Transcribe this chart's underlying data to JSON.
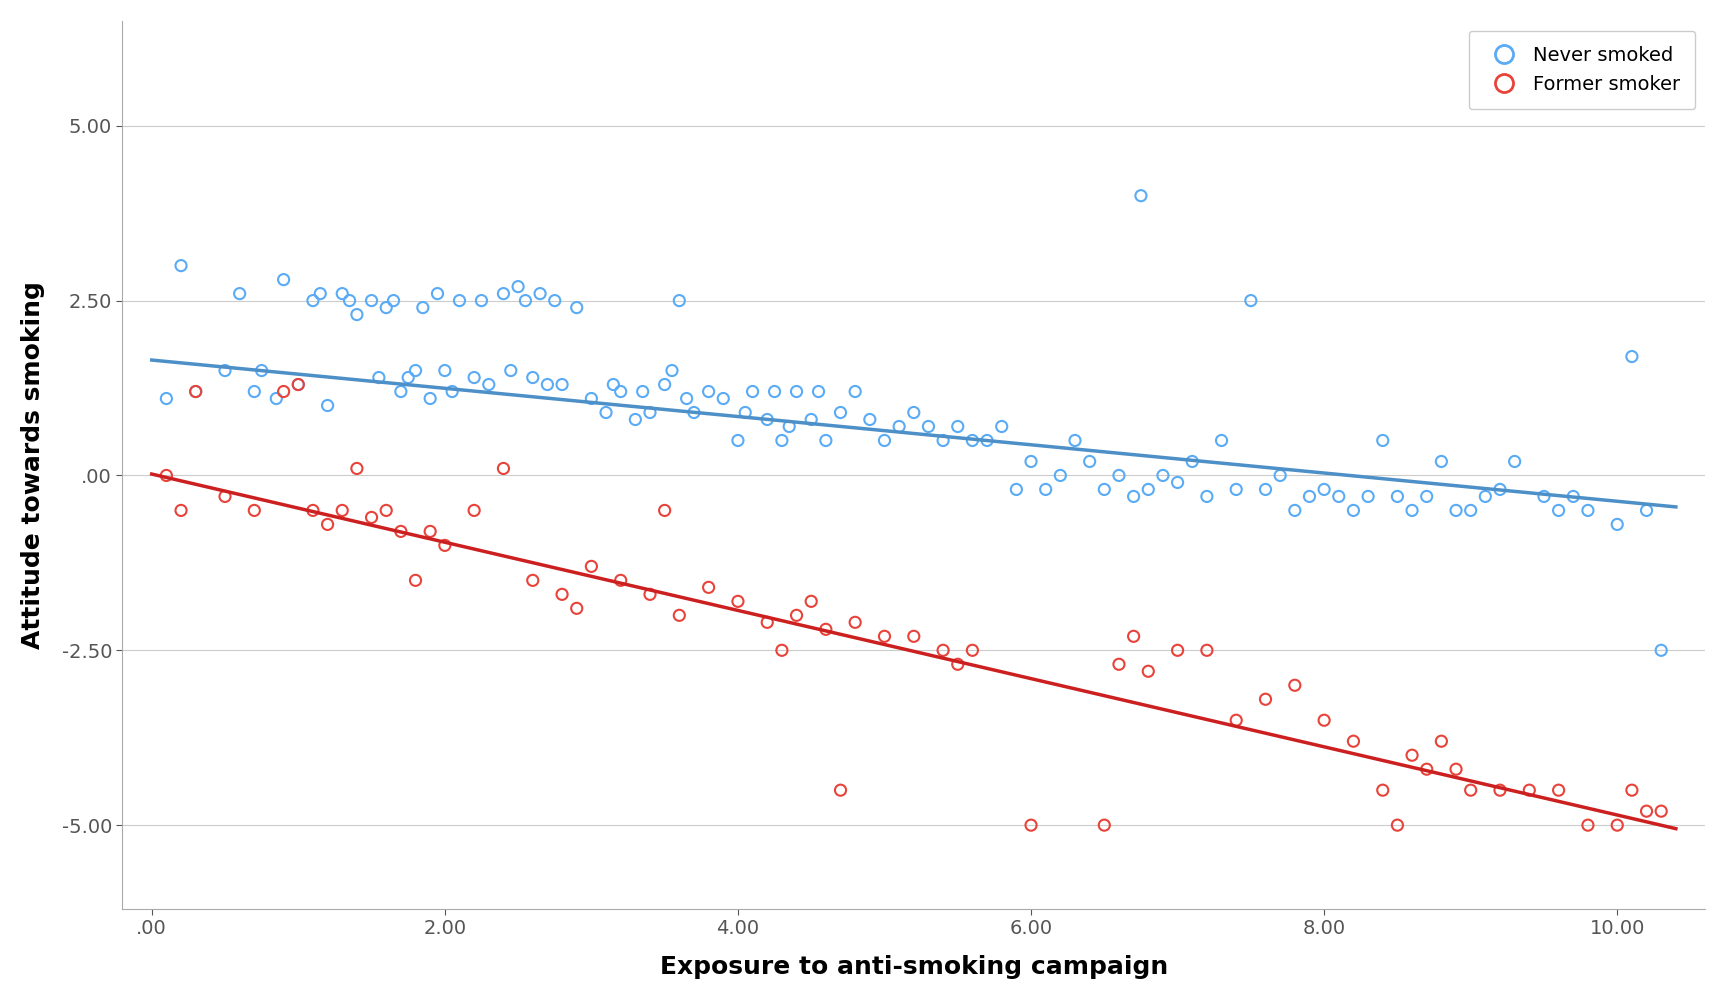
{
  "never_smoked_x": [
    0.1,
    0.2,
    0.3,
    0.5,
    0.6,
    0.7,
    0.75,
    0.85,
    0.9,
    1.0,
    1.1,
    1.15,
    1.2,
    1.3,
    1.35,
    1.4,
    1.5,
    1.55,
    1.6,
    1.65,
    1.7,
    1.75,
    1.8,
    1.85,
    1.9,
    1.95,
    2.0,
    2.05,
    2.1,
    2.2,
    2.25,
    2.3,
    2.4,
    2.45,
    2.5,
    2.55,
    2.6,
    2.65,
    2.7,
    2.75,
    2.8,
    2.9,
    3.0,
    3.1,
    3.15,
    3.2,
    3.3,
    3.35,
    3.4,
    3.5,
    3.55,
    3.6,
    3.65,
    3.7,
    3.8,
    3.9,
    4.0,
    4.05,
    4.1,
    4.2,
    4.25,
    4.3,
    4.35,
    4.4,
    4.5,
    4.55,
    4.6,
    4.7,
    4.8,
    4.9,
    5.0,
    5.1,
    5.2,
    5.3,
    5.4,
    5.5,
    5.6,
    5.7,
    5.8,
    5.9,
    6.0,
    6.1,
    6.2,
    6.3,
    6.4,
    6.5,
    6.6,
    6.7,
    6.75,
    6.8,
    6.9,
    7.0,
    7.1,
    7.2,
    7.3,
    7.4,
    7.5,
    7.6,
    7.7,
    7.8,
    7.9,
    8.0,
    8.1,
    8.2,
    8.3,
    8.4,
    8.5,
    8.6,
    8.7,
    8.8,
    8.9,
    9.0,
    9.1,
    9.2,
    9.3,
    9.5,
    9.6,
    9.7,
    9.8,
    10.0,
    10.1,
    10.2,
    10.3
  ],
  "never_smoked_y": [
    1.1,
    3.0,
    1.2,
    1.5,
    2.6,
    1.2,
    1.5,
    1.1,
    2.8,
    1.3,
    2.5,
    2.6,
    1.0,
    2.6,
    2.5,
    2.3,
    2.5,
    1.4,
    2.4,
    2.5,
    1.2,
    1.4,
    1.5,
    2.4,
    1.1,
    2.6,
    1.5,
    1.2,
    2.5,
    1.4,
    2.5,
    1.3,
    2.6,
    1.5,
    2.7,
    2.5,
    1.4,
    2.6,
    1.3,
    2.5,
    1.3,
    2.4,
    1.1,
    0.9,
    1.3,
    1.2,
    0.8,
    1.2,
    0.9,
    1.3,
    1.5,
    2.5,
    1.1,
    0.9,
    1.2,
    1.1,
    0.5,
    0.9,
    1.2,
    0.8,
    1.2,
    0.5,
    0.7,
    1.2,
    0.8,
    1.2,
    0.5,
    0.9,
    1.2,
    0.8,
    0.5,
    0.7,
    0.9,
    0.7,
    0.5,
    0.7,
    0.5,
    0.5,
    0.7,
    -0.2,
    0.2,
    -0.2,
    0.0,
    0.5,
    0.2,
    -0.2,
    0.0,
    -0.3,
    4.0,
    -0.2,
    0.0,
    -0.1,
    0.2,
    -0.3,
    0.5,
    -0.2,
    2.5,
    -0.2,
    0.0,
    -0.5,
    -0.3,
    -0.2,
    -0.3,
    -0.5,
    -0.3,
    0.5,
    -0.3,
    -0.5,
    -0.3,
    0.2,
    -0.5,
    -0.5,
    -0.3,
    -0.2,
    0.2,
    -0.3,
    -0.5,
    -0.3,
    -0.5,
    -0.7,
    1.7,
    -0.5,
    -2.5
  ],
  "former_smoker_x": [
    0.1,
    0.2,
    0.3,
    0.5,
    0.7,
    0.9,
    1.0,
    1.1,
    1.2,
    1.3,
    1.4,
    1.5,
    1.6,
    1.7,
    1.8,
    1.9,
    2.0,
    2.2,
    2.4,
    2.6,
    2.8,
    2.9,
    3.0,
    3.2,
    3.4,
    3.5,
    3.6,
    3.8,
    4.0,
    4.2,
    4.3,
    4.4,
    4.5,
    4.6,
    4.7,
    4.8,
    5.0,
    5.2,
    5.4,
    5.5,
    5.6,
    6.0,
    6.5,
    6.6,
    6.7,
    6.8,
    7.0,
    7.2,
    7.4,
    7.6,
    7.8,
    8.0,
    8.2,
    8.4,
    8.5,
    8.6,
    8.7,
    8.8,
    8.9,
    9.0,
    9.2,
    9.4,
    9.6,
    9.8,
    10.0,
    10.1,
    10.2,
    10.3
  ],
  "former_smoker_y": [
    0.0,
    -0.5,
    1.2,
    -0.3,
    -0.5,
    1.2,
    1.3,
    -0.5,
    -0.7,
    -0.5,
    0.1,
    -0.6,
    -0.5,
    -0.8,
    -1.5,
    -0.8,
    -1.0,
    -0.5,
    0.1,
    -1.5,
    -1.7,
    -1.9,
    -1.3,
    -1.5,
    -1.7,
    -0.5,
    -2.0,
    -1.6,
    -1.8,
    -2.1,
    -2.5,
    -2.0,
    -1.8,
    -2.2,
    -4.5,
    -2.1,
    -2.3,
    -2.3,
    -2.5,
    -2.7,
    -2.5,
    -5.0,
    -5.0,
    -2.7,
    -2.3,
    -2.8,
    -2.5,
    -2.5,
    -3.5,
    -3.2,
    -3.0,
    -3.5,
    -3.8,
    -4.5,
    -5.0,
    -4.0,
    -4.2,
    -3.8,
    -4.2,
    -4.5,
    -4.5,
    -4.5,
    -4.5,
    -5.0,
    -5.0,
    -4.5,
    -4.8,
    -4.8
  ],
  "never_line_x": [
    0.0,
    10.4
  ],
  "never_line_y": [
    1.65,
    -0.45
  ],
  "former_line_x": [
    0.0,
    10.4
  ],
  "former_line_y": [
    0.02,
    -5.05
  ],
  "never_color": "#5aabf5",
  "former_color": "#e8433a",
  "never_line_color": "#4d8fc7",
  "former_line_color": "#cc2020",
  "xlim": [
    -0.2,
    10.6
  ],
  "ylim": [
    -6.2,
    6.5
  ],
  "xticks": [
    0.0,
    2.0,
    4.0,
    6.0,
    8.0,
    10.0
  ],
  "xtick_labels": [
    ".00",
    "2.00",
    "4.00",
    "6.00",
    "8.00",
    "10.00"
  ],
  "yticks": [
    -5.0,
    -2.5,
    0.0,
    2.5,
    5.0
  ],
  "ytick_labels": [
    "-5.00",
    "-2.50",
    ".00",
    "2.50",
    "5.00"
  ],
  "xlabel": "Exposure to anti-smoking campaign",
  "ylabel": "Attitude towards smoking",
  "legend_labels": [
    "Never smoked",
    "Former smoker"
  ],
  "marker_size": 64,
  "line_width": 2.5,
  "background_color": "#ffffff",
  "grid_color": "#cccccc"
}
